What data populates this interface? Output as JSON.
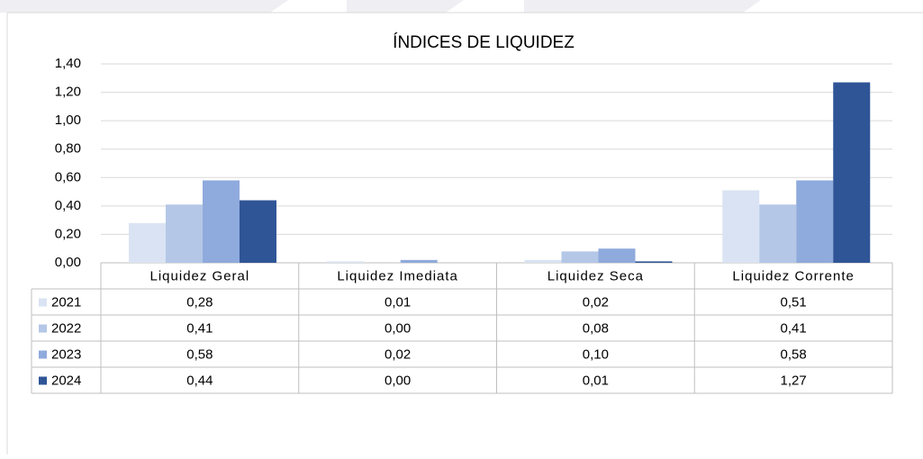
{
  "chart_data": {
    "type": "bar",
    "title": "ÍNDICES DE LIQUIDEZ",
    "categories": [
      "Liquidez Geral",
      "Liquidez Imediata",
      "Liquidez Seca",
      "Liquidez Corrente"
    ],
    "series": [
      {
        "name": "2021",
        "color": "#dae3f3",
        "values": [
          0.28,
          0.01,
          0.02,
          0.51
        ],
        "value_labels": [
          "0,28",
          "0,01",
          "0,02",
          "0,51"
        ]
      },
      {
        "name": "2022",
        "color": "#b4c7e7",
        "values": [
          0.41,
          0.0,
          0.08,
          0.41
        ],
        "value_labels": [
          "0,41",
          "0,00",
          "0,08",
          "0,41"
        ]
      },
      {
        "name": "2023",
        "color": "#8faadc",
        "values": [
          0.58,
          0.02,
          0.1,
          0.58
        ],
        "value_labels": [
          "0,58",
          "0,02",
          "0,10",
          "0,58"
        ]
      },
      {
        "name": "2024",
        "color": "#2f5597",
        "values": [
          0.44,
          0.0,
          0.01,
          1.27
        ],
        "value_labels": [
          "0,44",
          "0,00",
          "0,01",
          "1,27"
        ]
      }
    ],
    "ylim": [
      0,
      1.4
    ],
    "yticks": [
      {
        "value": 0,
        "label": "0,00"
      },
      {
        "value": 0.2,
        "label": "0,20"
      },
      {
        "value": 0.4,
        "label": "0,40"
      },
      {
        "value": 0.6,
        "label": "0,60"
      },
      {
        "value": 0.8,
        "label": "0,80"
      },
      {
        "value": 1.0,
        "label": "1,00"
      },
      {
        "value": 1.2,
        "label": "1,20"
      },
      {
        "value": 1.4,
        "label": "1,40"
      }
    ],
    "grid": true
  }
}
